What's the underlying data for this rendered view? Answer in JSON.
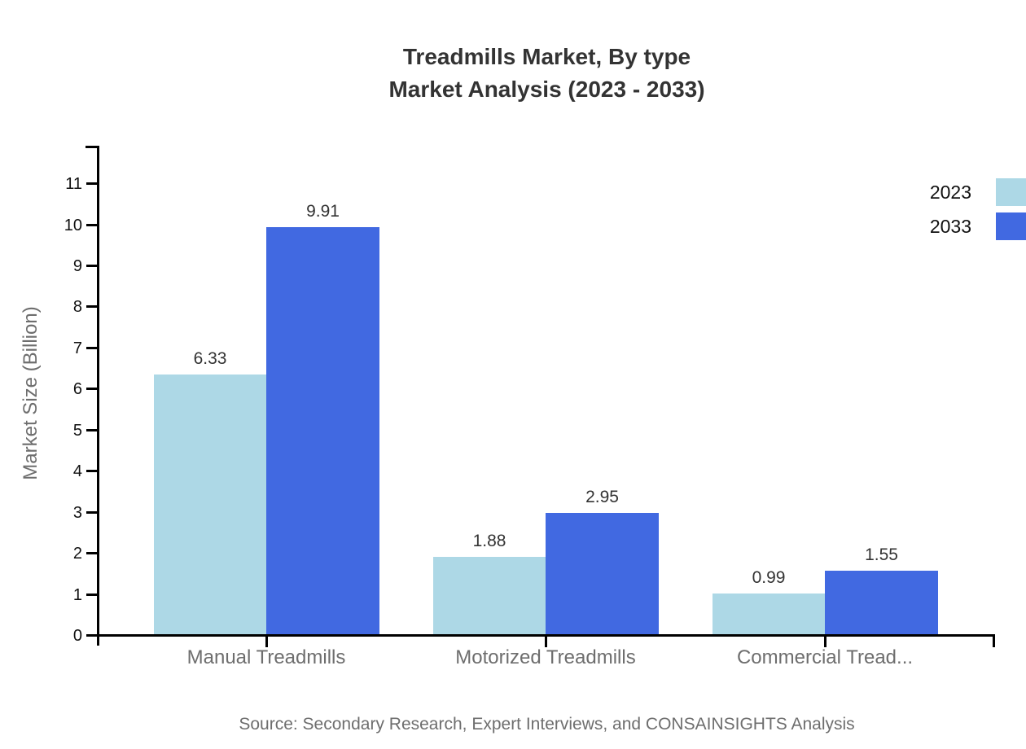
{
  "title": {
    "line1": "Treadmills Market, By type",
    "line2": "Market Analysis (2023 - 2033)"
  },
  "source": "Source: Secondary Research, Expert Interviews, and CONSAINSIGHTS Analysis",
  "chart_data": {
    "type": "bar",
    "title": "Treadmills Market, By type — Market Analysis (2023 - 2033)",
    "categories": [
      "Manual Treadmills",
      "Motorized Treadmills",
      "Commercial Tread..."
    ],
    "series": [
      {
        "name": "2023",
        "color": "#ADD8E6",
        "values": [
          6.33,
          1.88,
          0.99
        ]
      },
      {
        "name": "2033",
        "color": "#4169E1",
        "values": [
          9.91,
          2.95,
          1.55
        ]
      }
    ],
    "value_labels": [
      "6.33",
      "9.91",
      "1.88",
      "2.95",
      "0.99",
      "1.55"
    ],
    "xlabel": "",
    "ylabel": "Market Size (Billion)",
    "ylim": [
      0,
      11.9
    ],
    "yticks": [
      0,
      1,
      2,
      3,
      4,
      5,
      6,
      7,
      8,
      9,
      10,
      11
    ],
    "grid": false,
    "legend_position": "top-right",
    "axis_color": "#000000",
    "tick_label_color": "#111111",
    "category_label_color": "#6e6e6e",
    "value_label_color": "#333333"
  }
}
